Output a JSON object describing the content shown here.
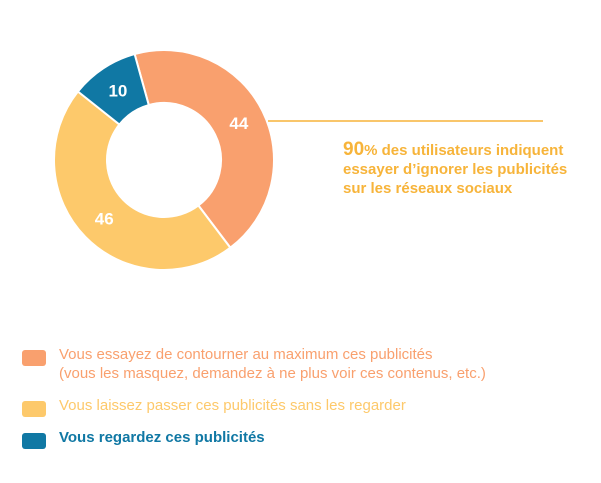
{
  "colors": {
    "orange": "#f9a06e",
    "yellow": "#fdc96b",
    "blue": "#1078a4",
    "callout": "#f7b43a"
  },
  "chart_data": {
    "type": "pie",
    "donut": true,
    "title": "",
    "slices": [
      {
        "label": "Vous essayez de contourner au maximum ces publicités (vous les masquez, demandez à ne plus voir ces contenus, etc.)",
        "value": 44,
        "display": "44",
        "color": "#f9a06e"
      },
      {
        "label": "Vous laissez passer ces publicités sans les regarder",
        "value": 46,
        "display": "46",
        "color": "#fdc96b"
      },
      {
        "label": "Vous regardez ces publicités",
        "value": 10,
        "display": "10",
        "color": "#1078a4"
      }
    ],
    "legend_position": "bottom",
    "annotation": {
      "big": "90",
      "rest": "% des utilisateurs indiquent essayer d’ignorer les publicités sur les réseaux sociaux"
    }
  },
  "legend": {
    "item1_line1": "Vous essayez de contourner au maximum ces publicités",
    "item1_line2": "(vous les masquez, demandez à ne plus voir ces contenus, etc.)",
    "item2": "Vous laissez passer ces publicités sans les regarder",
    "item3": "Vous regardez ces publicités"
  }
}
